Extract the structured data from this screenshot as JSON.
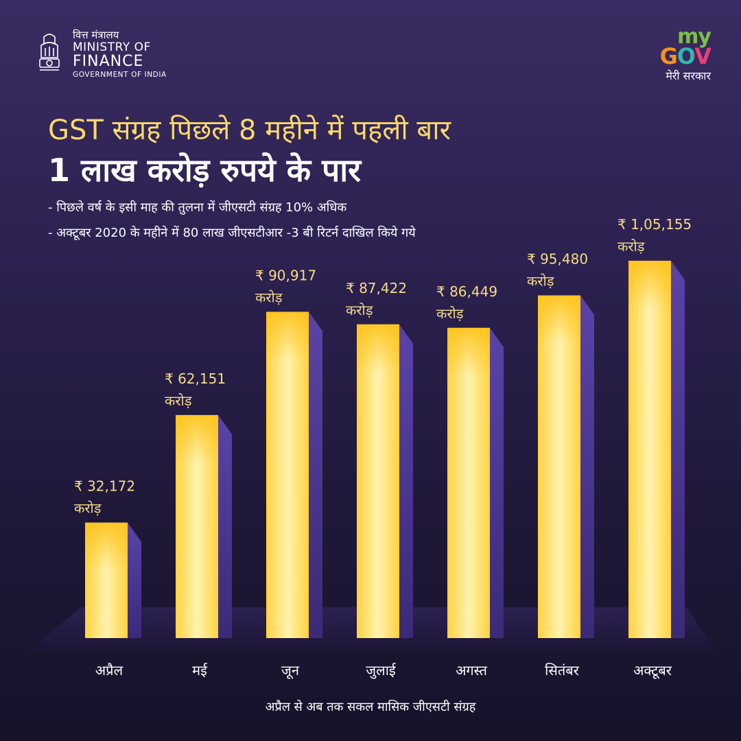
{
  "header": {
    "ministry_hindi": "वित्त मंत्रालय",
    "ministry_of": "MINISTRY OF",
    "ministry_finance": "FINANCE",
    "ministry_gov": "GOVERNMENT OF INDIA",
    "emblem_icon": "national-emblem-icon",
    "mygov_my": "my",
    "mygov_gov": "GOV",
    "mygov_tagline": "मेरी सरकार"
  },
  "title_line1": "GST संग्रह पिछले 8 महीने में पहली बार",
  "title_line2": "1 लाख करोड़ रुपये के पार",
  "bullets": [
    "- पिछले वर्ष के इसी माह की तुलना में जीएसटी संग्रह 10% अधिक",
    "- अक्टूबर 2020 के महीने में 80 लाख जीएसटीआर -3 बी रिटर्न दाखिल किये गये"
  ],
  "footer": "अप्रैल से अब तक सकल मासिक जीएसटी संग्रह",
  "colors": {
    "background_top": "#3a2c62",
    "background_bottom": "#17122a",
    "title_yellow": "#fbd96b",
    "bar_yellow": "#ffe066",
    "bar_side": "#4a3590",
    "label_yellow": "#f6dc8a"
  },
  "chart_data": {
    "type": "bar",
    "title": "",
    "xlabel": "",
    "ylabel": "",
    "categories": [
      "अप्रैल",
      "मई",
      "जून",
      "जुलाई",
      "अगस्त",
      "सितंबर",
      "अक्टूबर"
    ],
    "values": [
      32172,
      62151,
      90917,
      87422,
      86449,
      95480,
      105155
    ],
    "value_labels": [
      "₹ 32,172",
      "₹ 62,151",
      "₹ 90,917",
      "₹ 87,422",
      "₹ 86,449",
      "₹ 95,480",
      "₹ 1,05,155"
    ],
    "unit_label": "करोड़",
    "ylim": [
      0,
      110000
    ],
    "grid": false,
    "legend": "none"
  }
}
